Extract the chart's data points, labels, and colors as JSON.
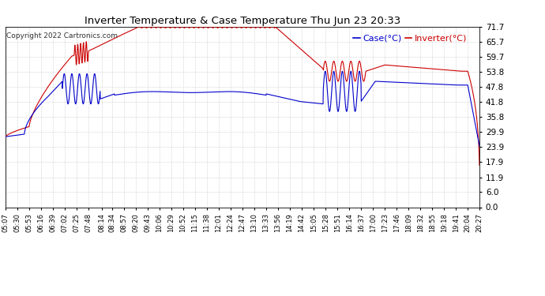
{
  "title": "Inverter Temperature & Case Temperature Thu Jun 23 20:33",
  "copyright": "Copyright 2022 Cartronics.com",
  "legend_case": "Case(°C)",
  "legend_inverter": "Inverter(°C)",
  "yticks": [
    0.0,
    6.0,
    11.9,
    17.9,
    23.9,
    29.9,
    35.8,
    41.8,
    47.8,
    53.8,
    59.7,
    65.7,
    71.7
  ],
  "ymin": 0.0,
  "ymax": 71.7,
  "background_color": "#ffffff",
  "plot_bg_color": "#ffffff",
  "grid_color": "#bbbbbb",
  "case_color": "#0000cc",
  "inverter_color": "#cc0000",
  "title_color": "#000000",
  "xtick_labels": [
    "05:07",
    "05:30",
    "05:53",
    "06:16",
    "06:39",
    "07:02",
    "07:25",
    "07:48",
    "08:14",
    "08:34",
    "08:57",
    "09:20",
    "09:43",
    "10:06",
    "10:29",
    "10:52",
    "11:15",
    "11:38",
    "12:01",
    "12:24",
    "12:47",
    "13:10",
    "13:33",
    "13:56",
    "14:19",
    "14:42",
    "15:05",
    "15:28",
    "15:51",
    "16:14",
    "16:37",
    "17:00",
    "17:23",
    "17:46",
    "18:09",
    "18:32",
    "18:55",
    "19:18",
    "19:41",
    "20:04",
    "20:27"
  ]
}
